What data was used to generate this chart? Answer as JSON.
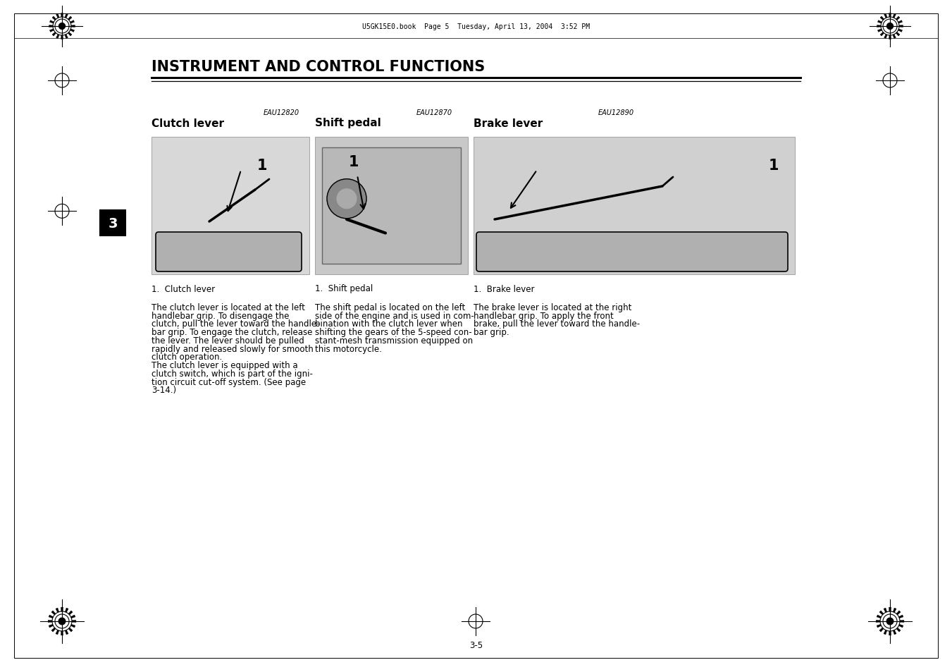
{
  "title": "INSTRUMENT AND CONTROL FUNCTIONS",
  "page_number": "3-5",
  "header_text": "U5GK15E0.book  Page 5  Tuesday, April 13, 2004  3:52 PM",
  "section1_code": "EAU12820",
  "section2_code": "EAU12870",
  "section3_code": "EAU12890",
  "section1_title": "Clutch lever",
  "section2_title": "Shift pedal",
  "section3_title": "Brake lever",
  "section1_label": "1.  Clutch lever",
  "section2_label": "1.  Shift pedal",
  "section3_label": "1.  Brake lever",
  "section1_para1": "The clutch lever is located at the left\nhandlebar grip. To disengage the\nclutch, pull the lever toward the handle-\nbar grip. To engage the clutch, release\nthe lever. The lever should be pulled\nrapidly and released slowly for smooth\nclutch operation.",
  "section1_para2": "The clutch lever is equipped with a\nclutch switch, which is part of the igni-\ntion circuit cut-off system. (See page\n3-14.)",
  "section2_text": "The shift pedal is located on the left\nside of the engine and is used in com-\nbination with the clutch lever when\nshifting the gears of the 5-speed con-\nstant-mesh transmission equipped on\nthis motorcycle.",
  "section3_text": "The brake lever is located at the right\nhandlebar grip. To apply the front\nbrake, pull the lever toward the handle-\nbar grip.",
  "bg_color": "#ffffff",
  "text_color": "#000000",
  "title_font_size": 15,
  "body_font_size": 8.5,
  "label_font_size": 8.5,
  "section_title_font_size": 11,
  "code_font_size": 7,
  "page_num_font_size": 8.5,
  "header_font_size": 7,
  "side_label": "3"
}
